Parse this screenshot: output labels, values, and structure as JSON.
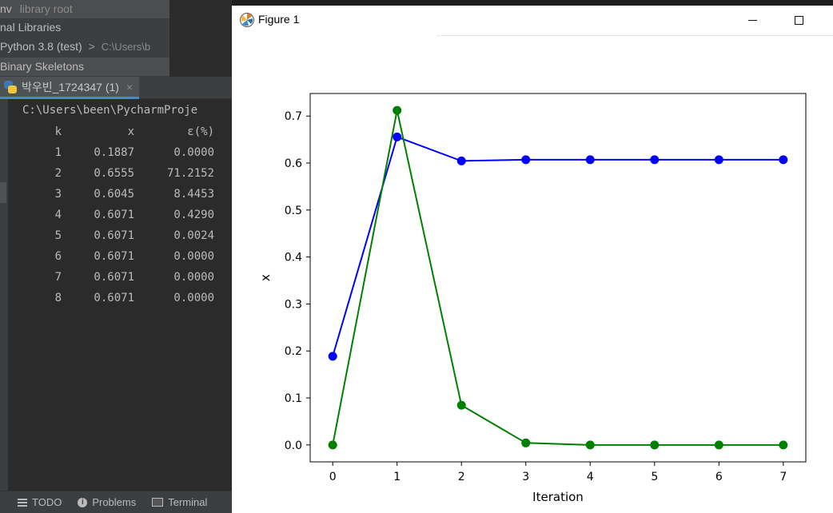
{
  "project_tree": {
    "rows": [
      {
        "name": "nv",
        "muted": "library root"
      },
      {
        "name": "nal Libraries"
      },
      {
        "name": "Python 3.8 (test)",
        "arrow": ">",
        "path": "C:\\Users\\b"
      },
      {
        "name": "Binary Skeletons"
      }
    ]
  },
  "run_tab": {
    "label": "박우빈_1724347 (1)",
    "close": "×"
  },
  "console": {
    "command": "C:\\Users\\been\\PycharmProje",
    "headers": [
      "k",
      "x",
      "ε(%)"
    ],
    "rows": [
      [
        "1",
        "0.1887",
        "0.0000"
      ],
      [
        "2",
        "0.6555",
        "71.2152"
      ],
      [
        "3",
        "0.6045",
        "8.4453"
      ],
      [
        "4",
        "0.6071",
        "0.4290"
      ],
      [
        "5",
        "0.6071",
        "0.0024"
      ],
      [
        "6",
        "0.6071",
        "0.0000"
      ],
      [
        "7",
        "0.6071",
        "0.0000"
      ],
      [
        "8",
        "0.6071",
        "0.0000"
      ]
    ]
  },
  "statusbar": {
    "todo": "TODO",
    "problems": "Problems",
    "terminal": "Terminal"
  },
  "figure": {
    "title": "Figure 1"
  },
  "chart_data": {
    "type": "line",
    "x": [
      0,
      1,
      2,
      3,
      4,
      5,
      6,
      7
    ],
    "series": [
      {
        "color": "#0000ff",
        "values": [
          0.1887,
          0.6555,
          0.6045,
          0.6071,
          0.6071,
          0.6071,
          0.6071,
          0.6071
        ]
      },
      {
        "color": "#008000",
        "values": [
          0.0,
          0.712152,
          0.084453,
          0.00429,
          2.4e-05,
          0.0,
          0.0,
          0.0
        ]
      }
    ],
    "xlabel": "Iteration",
    "ylabel": "x",
    "xticks": [
      "0",
      "1",
      "2",
      "3",
      "4",
      "5",
      "6",
      "7"
    ],
    "yticks": [
      "0.0",
      "0.1",
      "0.2",
      "0.3",
      "0.4",
      "0.5",
      "0.6",
      "0.7"
    ],
    "xlim": [
      -0.35,
      7.35
    ],
    "ylim": [
      -0.036,
      0.748
    ],
    "grid": false
  }
}
